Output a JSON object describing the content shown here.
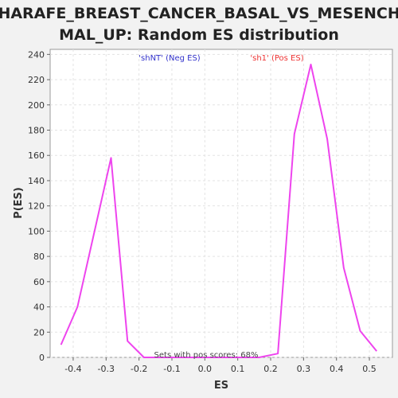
{
  "chart_data": {
    "type": "line",
    "title_line1": "CHARAFE_BREAST_CANCER_BASAL_VS_MESENCHY",
    "title_line2": "MAL_UP: Random ES distribution",
    "xlabel": "ES",
    "ylabel": "P(ES)",
    "xlim": [
      -0.47,
      0.57
    ],
    "ylim": [
      0,
      244
    ],
    "xticks": [
      -0.4,
      -0.3,
      -0.2,
      -0.1,
      0.0,
      0.1,
      0.2,
      0.3,
      0.4,
      0.5
    ],
    "xtick_labels": [
      "-0.4",
      "-0.3",
      "-0.2",
      "-0.1",
      "0.0",
      "0.1",
      "0.2",
      "0.3",
      "0.4",
      "0.5"
    ],
    "yticks": [
      0,
      20,
      40,
      60,
      80,
      100,
      120,
      140,
      160,
      180,
      200,
      220,
      240
    ],
    "ytick_labels": [
      "0",
      "20",
      "40",
      "60",
      "80",
      "100",
      "120",
      "140",
      "160",
      "180",
      "200",
      "220",
      "240"
    ],
    "grid": true,
    "series": [
      {
        "color": "#ee44ee",
        "x": [
          -0.437,
          -0.387,
          -0.285,
          -0.235,
          -0.185,
          -0.135,
          -0.085,
          -0.035,
          0.015,
          0.065,
          0.115,
          0.165,
          0.222,
          0.272,
          0.322,
          0.372,
          0.422,
          0.472,
          0.522
        ],
        "y": [
          10,
          40,
          158,
          13,
          0,
          0,
          0,
          0,
          0,
          0,
          0,
          0,
          3,
          177,
          232,
          173,
          71,
          21,
          5
        ]
      }
    ],
    "legend": [
      {
        "label": "'shNT' (Neg ES)",
        "color": "#3333cc"
      },
      {
        "label": "'sh1' (Pos ES)",
        "color": "#ee3333"
      }
    ],
    "annotation": "Sets with pos scores: 68%"
  }
}
